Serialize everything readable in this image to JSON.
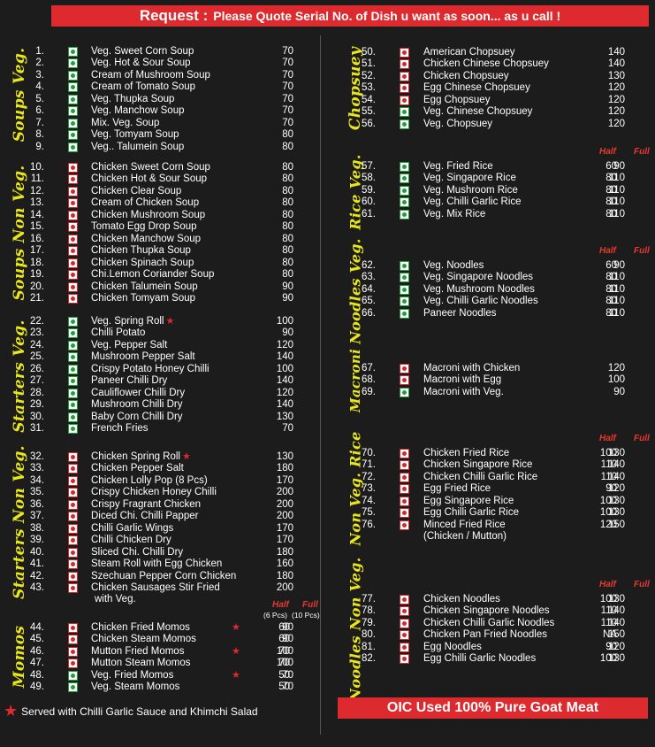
{
  "banner": {
    "title": "Request :",
    "text": "Please Quote Serial No. of Dish u want as soon... as u call !"
  },
  "footer": {
    "note": "Served with Chilli Garlic Sauce and Khimchi Salad",
    "meat": "OIC Used 100% Pure Goat Meat"
  },
  "sections": [
    {
      "label": "Soups Veg.",
      "items": [
        {
          "no": "1.",
          "type": "veg",
          "name": "Veg. Sweet Corn Soup",
          "price": "70"
        },
        {
          "no": "2.",
          "type": "veg",
          "name": "Veg. Hot & Sour Soup",
          "price": "70"
        },
        {
          "no": "3.",
          "type": "veg",
          "name": "Cream of Mushroom Soup",
          "price": "70"
        },
        {
          "no": "4.",
          "type": "veg",
          "name": "Cream of Tomato Soup",
          "price": "70"
        },
        {
          "no": "5.",
          "type": "veg",
          "name": "Veg. Thupka Soup",
          "price": "70"
        },
        {
          "no": "6.",
          "type": "veg",
          "name": "Veg. Manchow Soup",
          "price": "70"
        },
        {
          "no": "7.",
          "type": "veg",
          "name": "Mix. Veg. Soup",
          "price": "70"
        },
        {
          "no": "8.",
          "type": "veg",
          "name": "Veg. Tomyam Soup",
          "price": "80"
        },
        {
          "no": "9.",
          "type": "veg",
          "name": "Veg.. Talumein Soup",
          "price": "80"
        }
      ]
    },
    {
      "label": "Soups Non Veg.",
      "items": [
        {
          "no": "10.",
          "type": "nonveg",
          "name": "Chicken Sweet Corn Soup",
          "price": "80"
        },
        {
          "no": "11.",
          "type": "nonveg",
          "name": "Chicken Hot & Sour Soup",
          "price": "80"
        },
        {
          "no": "12.",
          "type": "nonveg",
          "name": "Chicken Clear Soup",
          "price": "80"
        },
        {
          "no": "13.",
          "type": "nonveg",
          "name": "Cream of Chicken Soup",
          "price": "80"
        },
        {
          "no": "14.",
          "type": "nonveg",
          "name": "Chicken Mushroom Soup",
          "price": "80"
        },
        {
          "no": "15.",
          "type": "nonveg",
          "name": "Tomato Egg Drop Soup",
          "price": "80"
        },
        {
          "no": "16.",
          "type": "nonveg",
          "name": "Chicken Manchow Soup",
          "price": "80"
        },
        {
          "no": "17.",
          "type": "nonveg",
          "name": "Chicken Thupka Soup",
          "price": "80"
        },
        {
          "no": "18.",
          "type": "nonveg",
          "name": "Chicken Spinach Soup",
          "price": "80"
        },
        {
          "no": "19.",
          "type": "nonveg",
          "name": "Chi.Lemon Coriander Soup",
          "price": "80"
        },
        {
          "no": "20.",
          "type": "nonveg",
          "name": "Chicken Talumein Soup",
          "price": "90"
        },
        {
          "no": "21.",
          "type": "nonveg",
          "name": "Chicken Tomyam Soup",
          "price": "90"
        }
      ]
    },
    {
      "label": "Starters Veg.",
      "items": [
        {
          "no": "22.",
          "type": "veg",
          "name": "Veg. Spring Roll",
          "star": true,
          "price": "100"
        },
        {
          "no": "23.",
          "type": "veg",
          "name": "Chilli Potato",
          "price": "90"
        },
        {
          "no": "24.",
          "type": "veg",
          "name": "Veg. Pepper Salt",
          "price": "120"
        },
        {
          "no": "25.",
          "type": "veg",
          "name": "Mushroom Pepper Salt",
          "price": "140"
        },
        {
          "no": "26.",
          "type": "veg",
          "name": "Crispy Potato Honey Chilli",
          "price": "100"
        },
        {
          "no": "27.",
          "type": "veg",
          "name": "Paneer Chilli Dry",
          "price": "140"
        },
        {
          "no": "28.",
          "type": "veg",
          "name": "Cauliflower Chilli Dry",
          "price": "120"
        },
        {
          "no": "29.",
          "type": "veg",
          "name": "Mushroom Chilli Dry",
          "price": "140"
        },
        {
          "no": "30.",
          "type": "veg",
          "name": "Baby Corn Chilli Dry",
          "price": "130"
        },
        {
          "no": "31.",
          "type": "veg",
          "name": "French Fries",
          "price": "70"
        }
      ]
    },
    {
      "label": "Starters Non Veg.",
      "items": [
        {
          "no": "32.",
          "type": "nonveg",
          "name": "Chicken Spring Roll",
          "star": true,
          "price": "130"
        },
        {
          "no": "33.",
          "type": "nonveg",
          "name": "Chicken Pepper Salt",
          "price": "180"
        },
        {
          "no": "34.",
          "type": "nonveg",
          "name": "Chicken Lolly Pop (8 Pcs)",
          "price": "170"
        },
        {
          "no": "35.",
          "type": "nonveg",
          "name": "Crispy Chicken Honey Chilli",
          "price": "200"
        },
        {
          "no": "36.",
          "type": "nonveg",
          "name": "Crispy Fragrant Chicken",
          "price": "200"
        },
        {
          "no": "37.",
          "type": "nonveg",
          "name": "Diced Chi. Chilli Papper",
          "price": "200"
        },
        {
          "no": "38.",
          "type": "nonveg",
          "name": "Chilli Garlic Wings",
          "price": "170"
        },
        {
          "no": "39.",
          "type": "nonveg",
          "name": "Chilli Chicken Dry",
          "price": "170"
        },
        {
          "no": "40.",
          "type": "nonveg",
          "name": "Sliced Chi. Chilli Dry",
          "price": "180"
        },
        {
          "no": "41.",
          "type": "nonveg",
          "name": "Steam Roll with Egg Chicken",
          "price": "160"
        },
        {
          "no": "42.",
          "type": "nonveg",
          "name": "Szechuan Pepper Corn Chicken",
          "price": "180"
        },
        {
          "no": "43.",
          "type": "nonveg",
          "name": "Chicken Sausages Stir Fried",
          "name2": "with Veg.",
          "price": "200"
        }
      ]
    },
    {
      "label": "Momos",
      "header": {
        "half": "Half",
        "full": "Full",
        "half_sub": "(6 Pcs)",
        "full_sub": "(10 Pcs)"
      },
      "items": [
        {
          "no": "44.",
          "type": "nonveg",
          "name": "Chicken Fried Momos",
          "star": true,
          "half": "60",
          "full": "90"
        },
        {
          "no": "45.",
          "type": "nonveg",
          "name": "Chicken Steam Momos",
          "half": "60",
          "full": "90"
        },
        {
          "no": "46.",
          "type": "nonveg",
          "name": "Mutton Fried Momos",
          "star": true,
          "half": "70",
          "full": "100"
        },
        {
          "no": "47.",
          "type": "nonveg",
          "name": "Mutton Steam Momos",
          "half": "70",
          "full": "100"
        },
        {
          "no": "48.",
          "type": "veg",
          "name": "Veg. Fried Momos",
          "star": true,
          "half": "50",
          "full": "70"
        },
        {
          "no": "49.",
          "type": "veg",
          "name": "Veg. Steam Momos",
          "half": "50",
          "full": "70"
        }
      ]
    },
    {
      "label": "Chopsuey",
      "items": [
        {
          "no": "50.",
          "type": "nonveg",
          "name": "American Chopsuey",
          "price": "140"
        },
        {
          "no": "51.",
          "type": "nonveg",
          "name": "Chicken Chinese Chopsuey",
          "price": "140"
        },
        {
          "no": "52.",
          "type": "nonveg",
          "name": "Chicken Chopsuey",
          "price": "130"
        },
        {
          "no": "53.",
          "type": "nonveg",
          "name": "Egg Chinese Chopsuey",
          "price": "120"
        },
        {
          "no": "54.",
          "type": "nonveg",
          "name": "Egg Chopsuey",
          "price": "120"
        },
        {
          "no": "55.",
          "type": "veg",
          "name": "Veg. Chinese Chopsuey",
          "price": "120"
        },
        {
          "no": "56.",
          "type": "veg",
          "name": "Veg. Chopsuey",
          "price": "120"
        }
      ]
    },
    {
      "label": "Rice Veg.",
      "header": {
        "half": "Half",
        "full": "Full"
      },
      "items": [
        {
          "no": "57.",
          "type": "veg",
          "name": "Veg. Fried Rice",
          "half": "60",
          "full": "90"
        },
        {
          "no": "58.",
          "type": "veg",
          "name": "Veg. Singapore Rice",
          "half": "80",
          "full": "110"
        },
        {
          "no": "59.",
          "type": "veg",
          "name": "Veg. Mushroom Rice",
          "half": "80",
          "full": "110"
        },
        {
          "no": "60.",
          "type": "veg",
          "name": "Veg. Chilli Garlic Rice",
          "half": "80",
          "full": "110"
        },
        {
          "no": "61.",
          "type": "veg",
          "name": "Veg. Mix Rice",
          "half": "80",
          "full": "110"
        }
      ]
    },
    {
      "label": "Noodles Veg.",
      "header": {
        "half": "Half",
        "full": "Full"
      },
      "items": [
        {
          "no": "62.",
          "type": "veg",
          "name": "Veg. Noodles",
          "half": "60",
          "full": "90"
        },
        {
          "no": "63.",
          "type": "veg",
          "name": "Veg. Singapore Noodles",
          "half": "80",
          "full": "110"
        },
        {
          "no": "64.",
          "type": "veg",
          "name": "Veg. Mushroom Noodles",
          "half": "80",
          "full": "110"
        },
        {
          "no": "65.",
          "type": "veg",
          "name": "Veg. Chilli Garlic Noodles",
          "half": "80",
          "full": "110"
        },
        {
          "no": "66.",
          "type": "veg",
          "name": "Paneer Noodles",
          "half": "80",
          "full": "110"
        }
      ]
    },
    {
      "label": "Macroni",
      "items": [
        {
          "no": "67.",
          "type": "nonveg",
          "name": "Macroni with Chicken",
          "price": "120"
        },
        {
          "no": "68.",
          "type": "nonveg",
          "name": "Macroni with Egg",
          "price": "100"
        },
        {
          "no": "69.",
          "type": "veg",
          "name": "Macroni with Veg.",
          "price": "90"
        }
      ]
    },
    {
      "label": "Non Veg. Rice",
      "header": {
        "half": "Half",
        "full": "Full"
      },
      "items": [
        {
          "no": "70.",
          "type": "nonveg",
          "name": "Chicken Fried Rice",
          "half": "100",
          "full": "130"
        },
        {
          "no": "71.",
          "type": "nonveg",
          "name": "Chicken Singapore Rice",
          "half": "110",
          "full": "140"
        },
        {
          "no": "72.",
          "type": "nonveg",
          "name": "Chicken Chilli Garlic Rice",
          "half": "110",
          "full": "140"
        },
        {
          "no": "73.",
          "type": "nonveg",
          "name": "Egg Fried Rice",
          "half": "90",
          "full": "120"
        },
        {
          "no": "74.",
          "type": "nonveg",
          "name": "Egg Singapore Rice",
          "half": "100",
          "full": "130"
        },
        {
          "no": "75.",
          "type": "nonveg",
          "name": "Egg Chilli Garlic Rice",
          "half": "100",
          "full": "130"
        },
        {
          "no": "76.",
          "type": "nonveg",
          "name": "Minced Fried Rice",
          "name2": "(Chicken / Mutton)",
          "half": "120",
          "full": "150"
        }
      ]
    },
    {
      "label": "Noodles Non Veg.",
      "header": {
        "half": "Half",
        "full": "Full"
      },
      "items": [
        {
          "no": "77.",
          "type": "nonveg",
          "name": "Chicken Noodles",
          "half": "100",
          "full": "130"
        },
        {
          "no": "78.",
          "type": "nonveg",
          "name": "Chicken Singapore Noodles",
          "half": "110",
          "full": "140"
        },
        {
          "no": "79.",
          "type": "nonveg",
          "name": "Chicken Chilli Garlic Noodles",
          "half": "110",
          "full": "140"
        },
        {
          "no": "80.",
          "type": "nonveg",
          "name": "Chicken Pan Fried Noodles",
          "half": "NA",
          "full": "150"
        },
        {
          "no": "81.",
          "type": "nonveg",
          "name": "Egg Noodles",
          "half": "90",
          "full": "120"
        },
        {
          "no": "82.",
          "type": "nonveg",
          "name": "Egg Chilli Garlic Noodles",
          "half": "100",
          "full": "130"
        }
      ]
    }
  ]
}
